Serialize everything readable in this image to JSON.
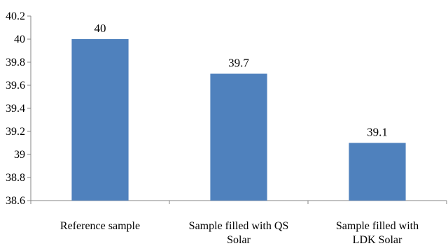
{
  "chart_data": {
    "type": "bar",
    "title": "",
    "xlabel": "",
    "ylabel": "",
    "categories": [
      [
        "Reference sample"
      ],
      [
        "Sample filled with QS",
        "Solar"
      ],
      [
        "Sample filled with",
        "LDK Solar"
      ]
    ],
    "values": [
      40,
      39.7,
      39.1
    ],
    "data_labels": [
      "40",
      "39.7",
      "39.1"
    ],
    "ylim": [
      38.6,
      40.2
    ],
    "yticks": [
      38.6,
      38.8,
      39,
      39.2,
      39.4,
      39.6,
      39.8,
      40,
      40.2
    ],
    "ytick_labels": [
      "38.6",
      "38.8",
      "39",
      "39.2",
      "39.4",
      "39.6",
      "39.8",
      "40",
      "40.2"
    ],
    "grid": "none",
    "legend": "none",
    "bar_color": "#4f81bd"
  }
}
